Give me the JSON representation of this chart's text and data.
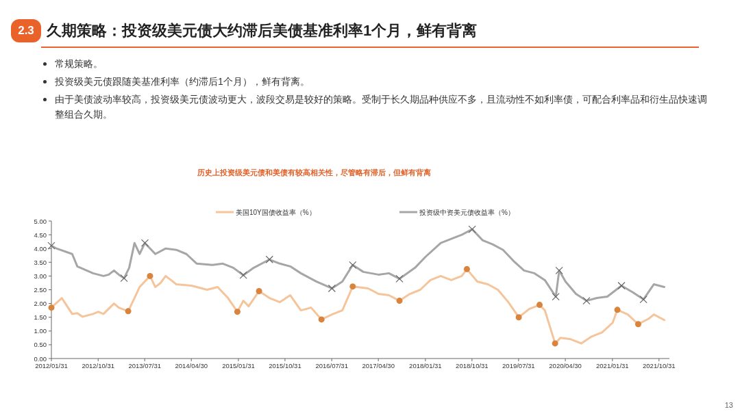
{
  "chart_data": {
    "type": "line",
    "title": "久期策略：投资级美元债大约滞后美债基准利率1个月，鲜有背离",
    "subtitle": "历史上投资级美元债和美债有较高相关性，尽管略有滞后，但鲜有背离",
    "annotations": [
      "2.3",
      "常规策略。",
      "投资级美元债跟随美基准利率（约滞后1个月），鲜有背离。",
      "由于美债波动率较高，投资级美元债波动更大，波段交易是较好的策略。受制于长久期品种供应不多，且流动性不如利率债，可配合利率品和衍生品快速调整组合久期。",
      "13"
    ],
    "legend": "top",
    "grid": false,
    "line_style": "solid",
    "xlim": [
      "2012-01-31",
      "2021-12-31"
    ],
    "xticks": [
      {
        "value": "2012-01-31",
        "label": "2012/01/31"
      },
      {
        "value": "2012-10-31",
        "label": "2012/10/31"
      },
      {
        "value": "2013-07-31",
        "label": "2013/07/31"
      },
      {
        "value": "2014-04-30",
        "label": "2014/04/30"
      },
      {
        "value": "2015-01-31",
        "label": "2015/01/31"
      },
      {
        "value": "2015-10-31",
        "label": "2015/10/31"
      },
      {
        "value": "2016-07-31",
        "label": "2016/07/31"
      },
      {
        "value": "2017-04-30",
        "label": "2017/04/30"
      },
      {
        "value": "2018-01-31",
        "label": "2018/01/31"
      },
      {
        "value": "2018-10-31",
        "label": "2018/10/31"
      },
      {
        "value": "2019-07-31",
        "label": "2019/07/31"
      },
      {
        "value": "2020-04-30",
        "label": "2020/04/30"
      },
      {
        "value": "2021-01-31",
        "label": "2021/01/31"
      },
      {
        "value": "2021-10-31",
        "label": "2021/10/31"
      }
    ],
    "ylim": [
      0,
      5
    ],
    "yticks": [
      {
        "value": 0,
        "label": "0.00"
      },
      {
        "value": 0.5,
        "label": "0.50"
      },
      {
        "value": 1,
        "label": "1.00"
      },
      {
        "value": 1.5,
        "label": "1.50"
      },
      {
        "value": 2,
        "label": "2.00"
      },
      {
        "value": 2.5,
        "label": "2.50"
      },
      {
        "value": 3,
        "label": "3.00"
      },
      {
        "value": 3.5,
        "label": "3.50"
      },
      {
        "value": 4,
        "label": "4.00"
      },
      {
        "value": 4.5,
        "label": "4.50"
      },
      {
        "value": 5,
        "label": "5.00"
      }
    ],
    "series": [
      {
        "name": "美国10Y国债收益率（%）",
        "color": "#f5c49a",
        "marker": "none",
        "x": [
          "2012-01-31",
          "2012-04",
          "2012-06",
          "2012-07",
          "2012-08",
          "2012-10",
          "2012-11",
          "2012-12",
          "2013-02",
          "2013-03",
          "2013-04-25",
          "2013-06",
          "2013-07",
          "2013-08-31",
          "2013-10",
          "2013-11",
          "2013-12",
          "2014-02",
          "2014-05",
          "2014-08",
          "2014-10",
          "2014-12",
          "2015-01-25",
          "2015-03",
          "2015-04",
          "2015-06",
          "2015-08",
          "2015-10",
          "2015-12",
          "2016-02",
          "2016-04",
          "2016-06",
          "2016-08",
          "2016-10",
          "2016-12",
          "2017-03",
          "2017-05",
          "2017-07",
          "2017-09",
          "2017-11",
          "2018-01",
          "2018-03",
          "2018-05",
          "2018-07",
          "2018-09",
          "2018-10",
          "2018-12",
          "2019-02",
          "2019-04",
          "2019-06",
          "2019-08",
          "2019-10",
          "2019-12",
          "2020-01",
          "2020-03",
          "2020-04",
          "2020-06",
          "2020-08",
          "2020-10",
          "2020-12",
          "2021-02",
          "2021-03",
          "2021-05",
          "2021-07",
          "2021-09",
          "2021-10",
          "2021-12"
        ],
        "values": [
          1.85,
          2.2,
          1.62,
          1.65,
          1.52,
          1.62,
          1.7,
          1.62,
          2.0,
          1.85,
          1.72,
          2.2,
          2.6,
          3.0,
          2.6,
          2.75,
          3.0,
          2.7,
          2.65,
          2.5,
          2.6,
          2.2,
          1.7,
          2.1,
          1.9,
          2.45,
          2.2,
          2.05,
          2.3,
          1.75,
          1.85,
          1.42,
          1.6,
          1.75,
          2.62,
          2.55,
          2.35,
          2.3,
          2.1,
          2.35,
          2.5,
          2.85,
          3.0,
          2.85,
          3.0,
          3.25,
          2.8,
          2.7,
          2.5,
          2.05,
          1.5,
          1.8,
          1.95,
          1.75,
          0.55,
          0.75,
          0.7,
          0.55,
          0.8,
          0.95,
          1.3,
          1.77,
          1.6,
          1.25,
          1.45,
          1.6,
          1.4
        ]
      },
      {
        "name": "投资级中资美元债收益率（%）",
        "color": "#a6a6a6",
        "marker": "none",
        "x": [
          "2012-01-31",
          "2012-03",
          "2012-06",
          "2012-07",
          "2012-10",
          "2012-12",
          "2013-01",
          "2013-02",
          "2013-03",
          "2013-04",
          "2013-05",
          "2013-06",
          "2013-07",
          "2013-08",
          "2013-10",
          "2013-12",
          "2014-02",
          "2014-04",
          "2014-06",
          "2014-09",
          "2014-11",
          "2015-01",
          "2015-03",
          "2015-05",
          "2015-08",
          "2015-10",
          "2015-12",
          "2016-02",
          "2016-05",
          "2016-08",
          "2016-10",
          "2016-12",
          "2017-02",
          "2017-05",
          "2017-07",
          "2017-09",
          "2017-12",
          "2018-02",
          "2018-05",
          "2018-07",
          "2018-09",
          "2018-11",
          "2019-01",
          "2019-03",
          "2019-05",
          "2019-07",
          "2019-09",
          "2019-11",
          "2020-01",
          "2020-03-05",
          "2020-03-25",
          "2020-05",
          "2020-07",
          "2020-09",
          "2020-11",
          "2021-01",
          "2021-03-25",
          "2021-06",
          "2021-08",
          "2021-10",
          "2021-12"
        ],
        "values": [
          4.1,
          4.0,
          3.8,
          3.35,
          3.1,
          3.0,
          3.05,
          3.2,
          3.05,
          2.92,
          3.3,
          4.2,
          3.8,
          4.2,
          3.8,
          4.0,
          3.95,
          3.8,
          3.45,
          3.4,
          3.45,
          3.3,
          3.03,
          3.3,
          3.6,
          3.45,
          3.35,
          3.1,
          2.8,
          2.55,
          2.8,
          3.4,
          3.15,
          3.05,
          3.1,
          2.9,
          3.3,
          3.7,
          4.2,
          4.35,
          4.5,
          4.7,
          4.3,
          4.15,
          3.95,
          3.55,
          3.2,
          3.1,
          2.85,
          2.25,
          3.2,
          2.8,
          2.35,
          2.1,
          2.2,
          2.25,
          2.65,
          2.4,
          2.15,
          2.7,
          2.6
        ]
      },
      {
        "type": "scatter",
        "color": "#d9843c",
        "marker": "circle",
        "x": [
          "2012-01-31",
          "2013-04-25",
          "2013-08-31",
          "2015-01-25",
          "2015-06",
          "2016-06",
          "2016-12",
          "2017-09",
          "2018-10",
          "2019-08",
          "2019-12",
          "2020-03",
          "2021-03",
          "2021-07"
        ],
        "values": [
          1.85,
          1.72,
          3.0,
          1.7,
          2.45,
          1.42,
          2.62,
          2.1,
          3.25,
          1.5,
          1.95,
          0.55,
          1.77,
          1.25
        ]
      },
      {
        "type": "scatter",
        "color": "#666666",
        "marker": "cross",
        "x": [
          "2012-01-31",
          "2013-04",
          "2013-08",
          "2015-03",
          "2015-08",
          "2016-08",
          "2016-12",
          "2017-09",
          "2018-11",
          "2020-03-05",
          "2020-03-25",
          "2020-09",
          "2021-03-25",
          "2021-08"
        ],
        "values": [
          4.1,
          2.92,
          4.2,
          3.03,
          3.6,
          2.55,
          3.4,
          2.9,
          4.7,
          2.25,
          3.2,
          2.1,
          2.65,
          2.15
        ]
      }
    ]
  }
}
